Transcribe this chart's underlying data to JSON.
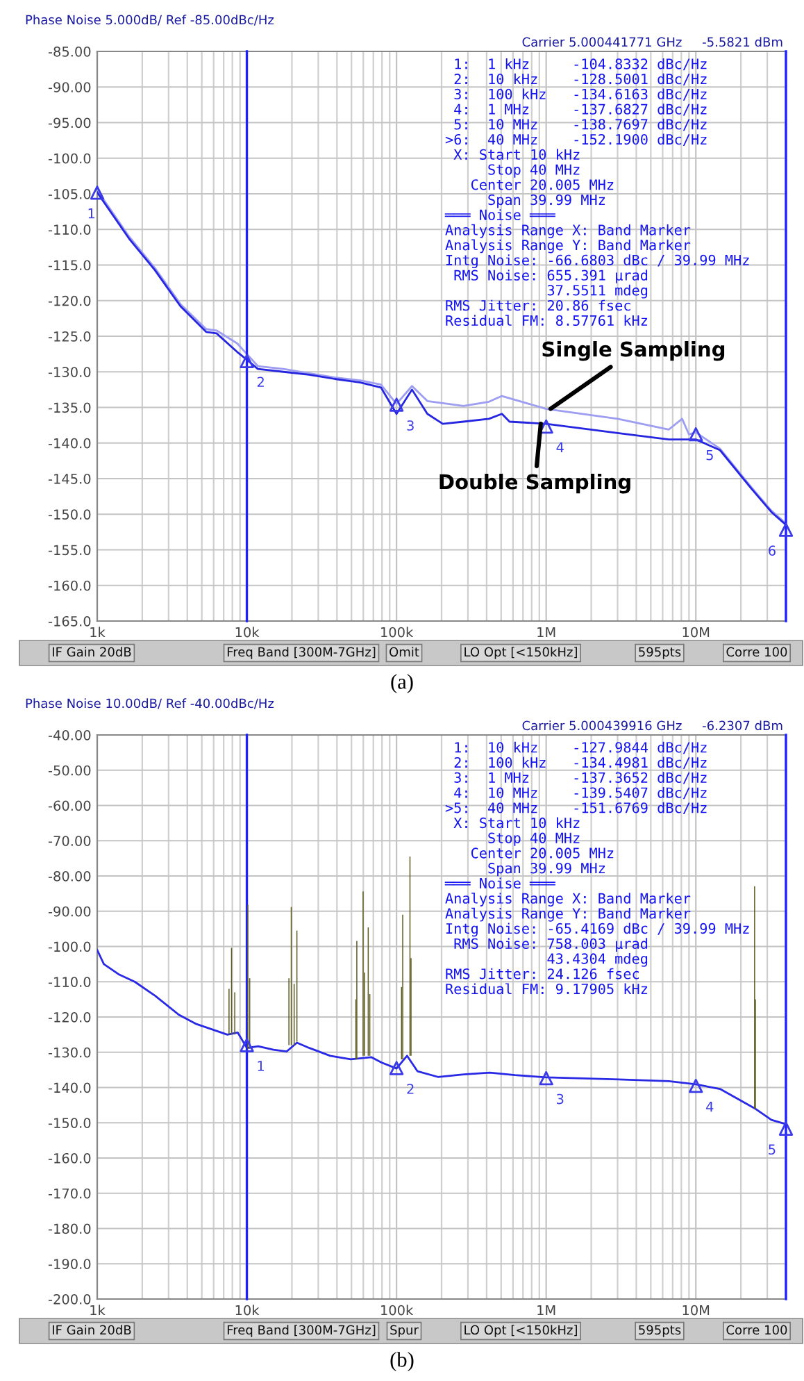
{
  "chart_data": [
    {
      "type": "line",
      "title": "Phase Noise 5.000dB/ Ref -85.00dBc/Hz",
      "subtitle": "Carrier 5.000441771 GHz     -5.5821 dBm",
      "log": "x",
      "grid": true,
      "marker": "none",
      "line_style": "solid",
      "xlim": [
        1000,
        40000000
      ],
      "xticks": [
        {
          "value": 1000,
          "label": "1k"
        },
        {
          "value": 10000,
          "label": "10k"
        },
        {
          "value": 100000,
          "label": "100k"
        },
        {
          "value": 1000000,
          "label": "1M"
        },
        {
          "value": 10000000,
          "label": "10M"
        }
      ],
      "ylim": [
        -165,
        -85
      ],
      "yticks": [
        {
          "value": -85,
          "label": "-85.00"
        },
        {
          "value": -90,
          "label": "-90.00"
        },
        {
          "value": -95,
          "label": "-95.00"
        },
        {
          "value": -100,
          "label": "-100.0"
        },
        {
          "value": -105,
          "label": "-105.0"
        },
        {
          "value": -110,
          "label": "-110.0"
        },
        {
          "value": -115,
          "label": "-115.0"
        },
        {
          "value": -120,
          "label": "-120.0"
        },
        {
          "value": -125,
          "label": "-125.0"
        },
        {
          "value": -130,
          "label": "-130.0"
        },
        {
          "value": -135,
          "label": "-135.0"
        },
        {
          "value": -140,
          "label": "-140.0"
        },
        {
          "value": -145,
          "label": "-145.0"
        },
        {
          "value": -150,
          "label": "-150.0"
        },
        {
          "value": -155,
          "label": "-155.0"
        },
        {
          "value": -160,
          "label": "-160.0"
        },
        {
          "value": -165,
          "label": "-165.0"
        }
      ],
      "series": [
        {
          "color": "#9d9df2",
          "x": [
            1000,
            1633,
            2425,
            3604,
            5348,
            6274,
            8606,
            10000,
            11840,
            17560,
            26050,
            38640,
            57300,
            78700,
            100000,
            126900,
            160700,
            280000,
            415000,
            506000,
            1000000,
            3000000,
            6600000,
            8100000,
            9000000,
            10000000,
            14500000,
            23500000,
            32000000,
            40000000
          ],
          "values": [
            -104.5,
            -111,
            -115.4,
            -120.5,
            -124,
            -124.2,
            -126,
            -127.5,
            -129.2,
            -129.6,
            -130.2,
            -130.8,
            -131.2,
            -131.8,
            -134.5,
            -132,
            -134.1,
            -134.8,
            -134.2,
            -133.4,
            -135.2,
            -136.6,
            -138.1,
            -136.6,
            -138.8,
            -138.5,
            -140.8,
            -146.2,
            -149.5,
            -151.3
          ]
        },
        {
          "color": "#2626e0",
          "x": [
            1000,
            1633,
            2425,
            3604,
            5348,
            6274,
            8606,
            10000,
            11840,
            17560,
            26050,
            38640,
            57300,
            78700,
            100000,
            126900,
            160700,
            203800,
            280000,
            415000,
            506000,
            569000,
            1000000,
            3000000,
            6600000,
            10000000,
            14500000,
            23500000,
            32000000,
            40000000
          ],
          "values": [
            -104.8,
            -111.3,
            -115.7,
            -120.8,
            -124.4,
            -124.6,
            -127.2,
            -128.3,
            -129.6,
            -130,
            -130.4,
            -131,
            -131.5,
            -132.2,
            -135.9,
            -132.5,
            -135.9,
            -137.3,
            -137,
            -136.6,
            -135.9,
            -137,
            -137.3,
            -138.6,
            -139.5,
            -139.5,
            -141,
            -146.4,
            -149.7,
            -151.5
          ]
        },
        {
          "type": "scatter",
          "marker": "triangle",
          "color": "#3a3ae8",
          "x": [
            1000,
            10000,
            100000,
            1000000,
            10000000,
            40000000
          ],
          "values": [
            -104.8332,
            -128.5001,
            -134.6163,
            -137.6827,
            -138.7697,
            -152.19
          ]
        }
      ],
      "ref_lines": [
        {
          "axis": "x",
          "value": 10000,
          "color": "#1f1fff"
        },
        {
          "axis": "x",
          "value": 40000000,
          "color": "#1f1fff"
        }
      ],
      "annotations": [
        {
          "text": "Single Sampling",
          "x": 1070000,
          "y": -135.2
        },
        {
          "text": "Double Sampling",
          "x": 920000,
          "y": -137.3
        },
        {
          "text": "1",
          "x": 1000,
          "y": -104.8332
        },
        {
          "text": "2",
          "x": 10000,
          "y": -128.5001
        },
        {
          "text": "3",
          "x": 100000,
          "y": -134.6163
        },
        {
          "text": "4",
          "x": 1000000,
          "y": -137.6827
        },
        {
          "text": "5",
          "x": 10000000,
          "y": -138.7697
        },
        {
          "text": "6",
          "x": 40000000,
          "y": -152.19
        },
        " 1:  1 kHz     -104.8332 dBc/Hz",
        " 2:  10 kHz    -128.5001 dBc/Hz",
        " 3:  100 kHz   -134.6163 dBc/Hz",
        " 4:  1 MHz     -137.6827 dBc/Hz",
        " 5:  10 MHz    -138.7697 dBc/Hz",
        ">6:  40 MHz    -152.1900 dBc/Hz",
        " X: Start 10 kHz",
        "     Stop 40 MHz",
        "   Center 20.005 MHz",
        "     Span 39.99 MHz",
        "═══ Noise ═══",
        "Analysis Range X: Band Marker",
        "Analysis Range Y: Band Marker",
        "Intg Noise: -66.6803 dBc / 39.99 MHz",
        " RMS Noise: 655.391 µrad",
        "            37.5511 mdeg",
        "RMS Jitter: 20.86 fsec",
        "Residual FM: 8.57761 kHz",
        "IF Gain 20dB",
        "Freq Band [300M-7GHz]",
        "Omit",
        "LO Opt [<150kHz]",
        "595pts",
        "Corre 100",
        "(a)"
      ]
    },
    {
      "type": "line",
      "title": "Phase Noise 10.00dB/ Ref -40.00dBc/Hz",
      "subtitle": "Carrier 5.000439916 GHz     -6.2307 dBm",
      "log": "x",
      "grid": true,
      "marker": "none",
      "line_style": "solid",
      "xlim": [
        1000,
        40000000
      ],
      "xticks": [
        {
          "value": 1000,
          "label": "1k"
        },
        {
          "value": 10000,
          "label": "10k"
        },
        {
          "value": 100000,
          "label": "100k"
        },
        {
          "value": 1000000,
          "label": "1M"
        },
        {
          "value": 10000000,
          "label": "10M"
        }
      ],
      "ylim": [
        -200,
        -40
      ],
      "yticks": [
        {
          "value": -40,
          "label": "-40.00"
        },
        {
          "value": -50,
          "label": "-50.00"
        },
        {
          "value": -60,
          "label": "-60.00"
        },
        {
          "value": -70,
          "label": "-70.00"
        },
        {
          "value": -80,
          "label": "-80.00"
        },
        {
          "value": -90,
          "label": "-90.00"
        },
        {
          "value": -100,
          "label": "-100.0"
        },
        {
          "value": -110,
          "label": "-110.0"
        },
        {
          "value": -120,
          "label": "-120.0"
        },
        {
          "value": -130,
          "label": "-130.0"
        },
        {
          "value": -140,
          "label": "-140.0"
        },
        {
          "value": -150,
          "label": "-150.0"
        },
        {
          "value": -160,
          "label": "-160.0"
        },
        {
          "value": -170,
          "label": "-170.0"
        },
        {
          "value": -180,
          "label": "-180.0"
        },
        {
          "value": -190,
          "label": "-190.0"
        },
        {
          "value": -200,
          "label": "-200.0"
        }
      ],
      "series": [
        {
          "type": "bar",
          "color": "#5c5a1e",
          "x": [
            7600,
            7900,
            8300,
            10150,
            10450,
            19100,
            19800,
            20700,
            21600,
            53500,
            54300,
            59800,
            61200,
            64700,
            66300,
            108000,
            110000,
            123000,
            125000,
            24700000,
            25000000
          ],
          "base": [
            -125,
            -125,
            -125,
            -129,
            -129,
            -128,
            -128,
            -128,
            -127,
            -132,
            -132,
            -131,
            -131,
            -131,
            -131,
            -132,
            -132,
            -131,
            -131,
            -146,
            -146
          ],
          "values": [
            13,
            24.6,
            12,
            40.8,
            20,
            19,
            39.2,
            17.4,
            31.5,
            17,
            33.6,
            46.6,
            23.6,
            36.4,
            17.5,
            20.5,
            41,
            56.5,
            27.7,
            63.1,
            31
          ]
        },
        {
          "color": "#2a2ae6",
          "x": [
            1000,
            1108,
            1405,
            1781,
            2444,
            3492,
            4603,
            7404,
            8680,
            10000,
            11900,
            15060,
            18420,
            21600,
            26200,
            36040,
            49400,
            67800,
            79300,
            100000,
            117600,
            138200,
            189000,
            282000,
            420000,
            619000,
            1000000,
            3050000,
            6600000,
            10000000,
            14500000,
            24700000,
            32000000,
            40000000
          ],
          "values": [
            -101,
            -105,
            -108,
            -110,
            -114,
            -119.3,
            -122,
            -125,
            -124.4,
            -128.8,
            -128.3,
            -129.3,
            -129.8,
            -127.3,
            -128.8,
            -131,
            -132,
            -131.4,
            -132.9,
            -134.6,
            -131,
            -135.4,
            -137,
            -136.3,
            -135.8,
            -136.5,
            -137.1,
            -137.7,
            -138.2,
            -139.1,
            -140.4,
            -145.9,
            -149.2,
            -150.4
          ]
        },
        {
          "type": "scatter",
          "marker": "triangle",
          "color": "#3a3ae8",
          "x": [
            10000,
            100000,
            1000000,
            10000000,
            40000000
          ],
          "values": [
            -127.9844,
            -134.4981,
            -137.3652,
            -139.5407,
            -151.6769
          ]
        }
      ],
      "ref_lines": [
        {
          "axis": "x",
          "value": 10000,
          "color": "#1f1fff"
        },
        {
          "axis": "x",
          "value": 40000000,
          "color": "#1f1fff"
        }
      ],
      "annotations": [
        {
          "text": "1",
          "x": 10000,
          "y": -127.9844
        },
        {
          "text": "2",
          "x": 100000,
          "y": -134.4981
        },
        {
          "text": "3",
          "x": 1000000,
          "y": -137.3652
        },
        {
          "text": "4",
          "x": 10000000,
          "y": -139.5407
        },
        {
          "text": "5",
          "x": 40000000,
          "y": -151.6769
        },
        " 1:  10 kHz    -127.9844 dBc/Hz",
        " 2:  100 kHz   -134.4981 dBc/Hz",
        " 3:  1 MHz     -137.3652 dBc/Hz",
        " 4:  10 MHz    -139.5407 dBc/Hz",
        ">5:  40 MHz    -151.6769 dBc/Hz",
        " X: Start 10 kHz",
        "     Stop 40 MHz",
        "   Center 20.005 MHz",
        "     Span 39.99 MHz",
        "═══ Noise ═══",
        "Analysis Range X: Band Marker",
        "Analysis Range Y: Band Marker",
        "Intg Noise: -65.4169 dBc / 39.99 MHz",
        " RMS Noise: 758.003 µrad",
        "            43.4304 mdeg",
        "RMS Jitter: 24.126 fsec",
        "Residual FM: 9.17905 kHz",
        "IF Gain 20dB",
        "Freq Band [300M-7GHz]",
        "Spur",
        "LO Opt [<150kHz]",
        "595pts",
        "Corre 100",
        "(b)"
      ]
    }
  ]
}
